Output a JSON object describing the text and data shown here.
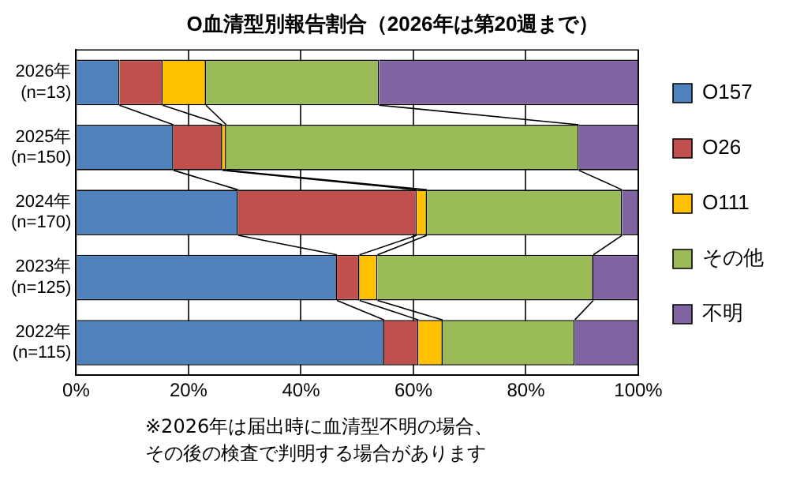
{
  "chart_data": {
    "type": "bar",
    "orientation": "horizontal",
    "stacked": true,
    "title": "O血清型別報告割合（2026年は第20週まで）",
    "categories": [
      "2026年\n(n=13)",
      "2025年\n(n=150)",
      "2024年\n(n=170)",
      "2023年\n(n=125)",
      "2022年\n(n=115)"
    ],
    "series": [
      {
        "name": "O157",
        "color": "#4f81bd",
        "values": [
          7.7,
          17.3,
          28.8,
          46.4,
          54.8
        ]
      },
      {
        "name": "O26",
        "color": "#c0504d",
        "values": [
          7.7,
          8.7,
          31.8,
          4.0,
          6.1
        ]
      },
      {
        "name": "O111",
        "color": "#ffc000",
        "values": [
          7.7,
          0.7,
          1.8,
          3.2,
          4.3
        ]
      },
      {
        "name": "その他",
        "color": "#9bbb59",
        "values": [
          30.8,
          62.7,
          34.7,
          38.4,
          23.5
        ]
      },
      {
        "name": "不明",
        "color": "#8064a2",
        "values": [
          46.2,
          10.7,
          2.9,
          8.0,
          11.3
        ]
      }
    ],
    "xlim": [
      0,
      100
    ],
    "xticks": [
      {
        "value": 0,
        "label": "0%"
      },
      {
        "value": 20,
        "label": "20%"
      },
      {
        "value": 40,
        "label": "40%"
      },
      {
        "value": 60,
        "label": "60%"
      },
      {
        "value": 80,
        "label": "80%"
      },
      {
        "value": 100,
        "label": "100%"
      }
    ],
    "grid": "x",
    "legend": "right",
    "annotations": [
      "※2026年は届出時に血清型不明の場合、",
      "その後の検査で判明する場合があります"
    ]
  }
}
